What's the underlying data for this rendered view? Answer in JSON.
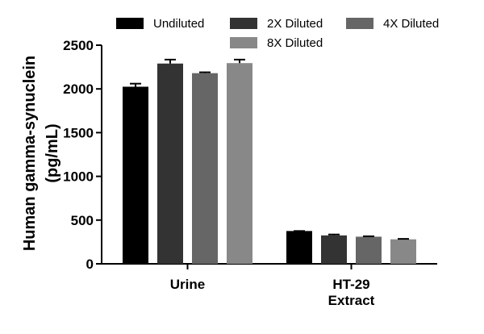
{
  "chart_data": {
    "type": "bar",
    "title": "",
    "xlabel": "",
    "ylabel_lines": [
      "Human gamma-synuclein",
      "(pg/mL)"
    ],
    "ylim": [
      0,
      2500
    ],
    "yticks": [
      "0",
      "500",
      "1000",
      "1500",
      "2000",
      "2500"
    ],
    "categories": [
      [
        "Urine"
      ],
      [
        "HT-29",
        "Extract"
      ]
    ],
    "grid": false,
    "legend_position": "top",
    "series": [
      {
        "name": "Undiluted",
        "color": "#000000",
        "values": [
          2025,
          375
        ],
        "errors": [
          35,
          0
        ]
      },
      {
        "name": "2X Diluted",
        "color": "#333333",
        "values": [
          2290,
          325
        ],
        "errors": [
          45,
          10
        ]
      },
      {
        "name": "4X Diluted",
        "color": "#666666",
        "values": [
          2180,
          310
        ],
        "errors": [
          10,
          5
        ]
      },
      {
        "name": "8X Diluted",
        "color": "#888888",
        "values": [
          2295,
          280
        ],
        "errors": [
          40,
          5
        ]
      }
    ]
  }
}
